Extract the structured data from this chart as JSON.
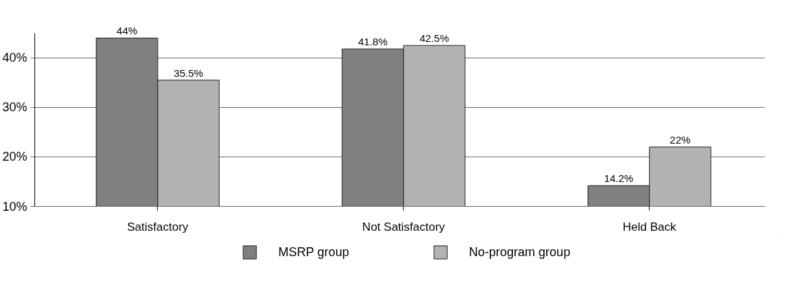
{
  "chart_data": {
    "type": "bar",
    "categories": [
      "Satisfactory",
      "Not Satisfactory",
      "Held Back"
    ],
    "series": [
      {
        "name": "MSRP group",
        "color": "#808080",
        "values": [
          44,
          41.8,
          14.2
        ],
        "value_labels": [
          "44%",
          "41.8%",
          "14.2%"
        ]
      },
      {
        "name": "No-program group",
        "color": "#b2b2b2",
        "values": [
          35.5,
          42.5,
          22
        ],
        "value_labels": [
          "35.5%",
          "42.5%",
          "22%"
        ]
      }
    ],
    "ylim": [
      10,
      45
    ],
    "yticks": [
      {
        "value": 10,
        "label": "10%"
      },
      {
        "value": 20,
        "label": "20%"
      },
      {
        "value": 30,
        "label": "30%"
      },
      {
        "value": 40,
        "label": "40%"
      }
    ],
    "grid": "y",
    "legend": "bottom"
  }
}
